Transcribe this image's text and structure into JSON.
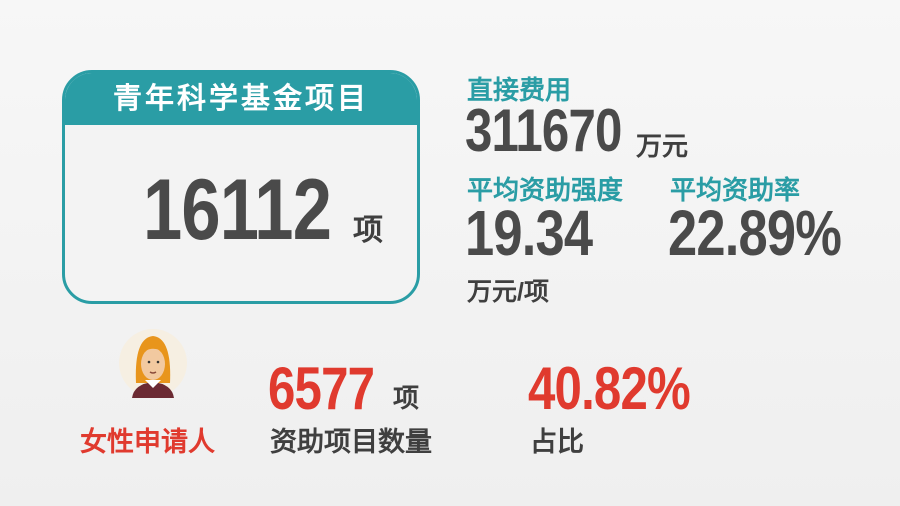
{
  "youth_fund": {
    "title": "青年科学基金项目",
    "count": "16112",
    "unit": "项"
  },
  "direct_cost": {
    "label": "直接费用",
    "value": "311670",
    "unit": "万元"
  },
  "avg_intensity": {
    "label": "平均资助强度",
    "value": "19.34",
    "unit": "万元/项"
  },
  "avg_rate": {
    "label": "平均资助率",
    "value": "22.89%"
  },
  "female": {
    "label": "女性申请人",
    "icon": "woman-avatar-icon",
    "count": "6577",
    "count_unit": "项",
    "count_label": "资助项目数量",
    "ratio": "40.82%",
    "ratio_label": "占比"
  },
  "colors": {
    "teal": "#2a9da5",
    "red": "#e03a2e",
    "dark": "#4a4a4a"
  }
}
